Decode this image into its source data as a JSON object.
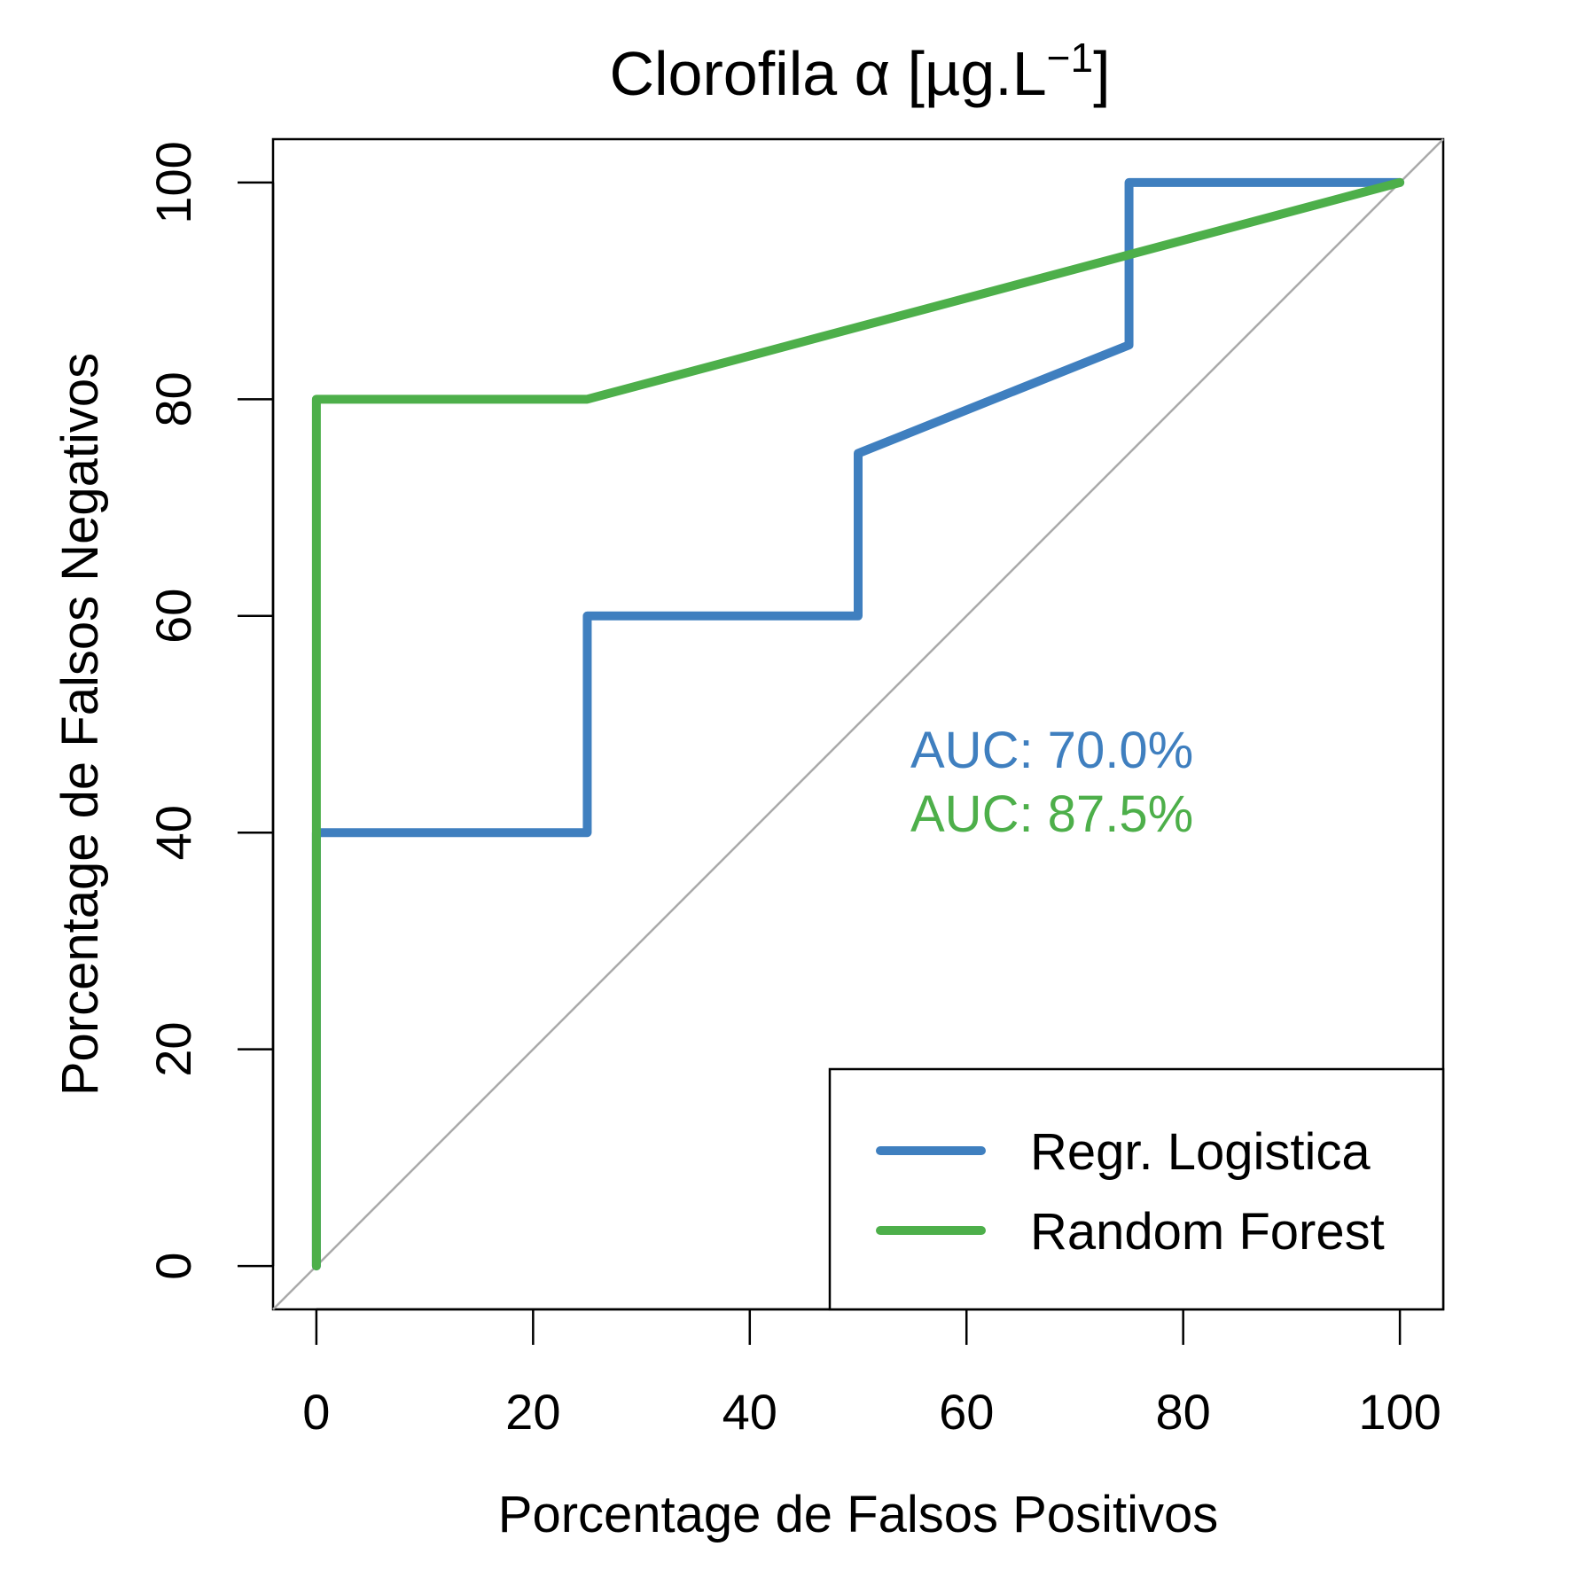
{
  "chart_data": {
    "type": "line",
    "title": "Clorofila α [µg.L",
    "title_superscript": "−1",
    "title_suffix": "]",
    "xlabel": "Porcentage de Falsos Positivos",
    "ylabel": "Porcentage de Falsos Negativos",
    "xlim": [
      -4,
      104
    ],
    "ylim": [
      -4,
      104
    ],
    "xticks": [
      0,
      20,
      40,
      60,
      80,
      100
    ],
    "yticks": [
      0,
      20,
      40,
      60,
      80,
      100
    ],
    "x_tick_labels": [
      "0",
      "20",
      "40",
      "60",
      "80",
      "100"
    ],
    "y_tick_labels": [
      "0",
      "20",
      "40",
      "60",
      "80",
      "100"
    ],
    "grid": false,
    "legend_position": "bottom-right",
    "reference_line": {
      "points": [
        [
          -4,
          -4
        ],
        [
          104,
          104
        ]
      ],
      "color": "#aaaaaa"
    },
    "series": [
      {
        "name": "Regr. Logistica",
        "color": "#3f7fbf",
        "points": [
          [
            0,
            0
          ],
          [
            0,
            40
          ],
          [
            25,
            40
          ],
          [
            25,
            60
          ],
          [
            50,
            60
          ],
          [
            50,
            75
          ],
          [
            75,
            85
          ],
          [
            75,
            100
          ],
          [
            100,
            100
          ]
        ]
      },
      {
        "name": "Random Forest",
        "color": "#4daf4a",
        "points": [
          [
            0,
            0
          ],
          [
            0,
            80
          ],
          [
            25,
            80
          ],
          [
            100,
            100
          ]
        ]
      }
    ],
    "annotations": [
      {
        "text": "AUC: 70.0%",
        "color": "#3f7fbf"
      },
      {
        "text": "AUC: 87.5%",
        "color": "#4daf4a"
      }
    ]
  }
}
